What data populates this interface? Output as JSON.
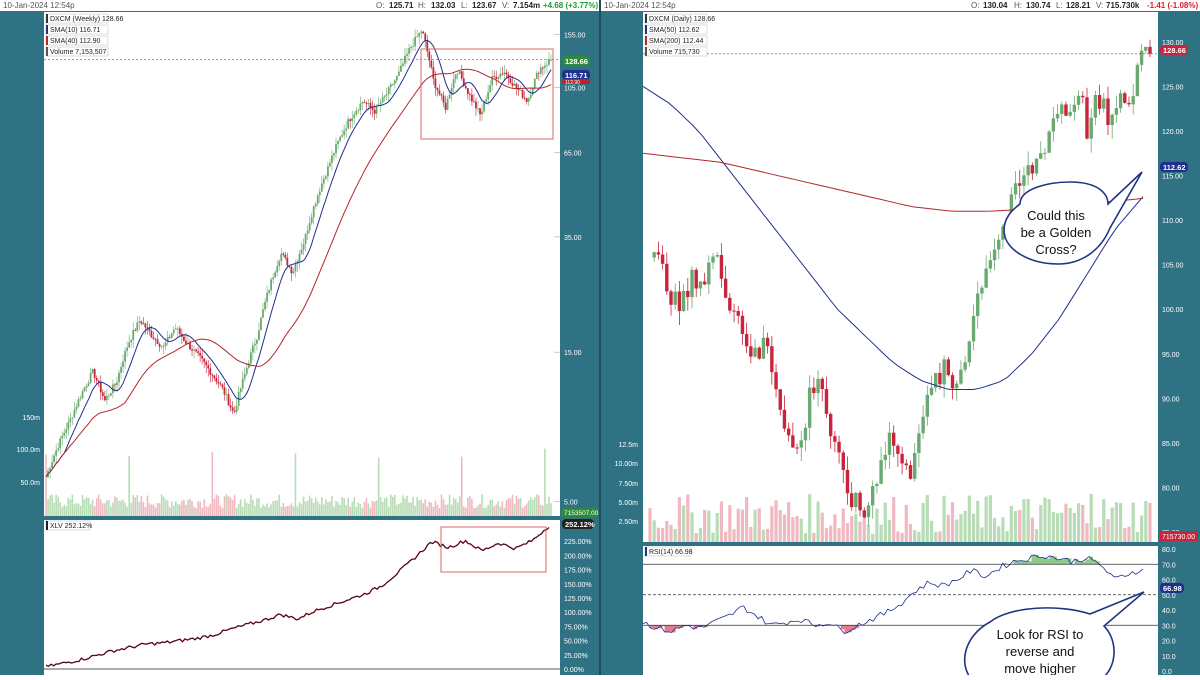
{
  "colors": {
    "frame": "#2f7284",
    "up": "#6aaa70",
    "down": "#c8243b",
    "sma_short": "#1e2f8c",
    "sma_long": "#b3262a",
    "annotation": "#1f3480",
    "rsi_up": "#8ecb8a",
    "rsi_down": "#e57e8c",
    "positive": "#1e9a38",
    "negative": "#d4202a"
  },
  "left": {
    "topbar": {
      "date": "10-Jan-2024 12:54p",
      "o_label": "O:",
      "o_value": "125.71",
      "h_label": "H:",
      "h_value": "132.03",
      "l_label": "L:",
      "l_value": "123.67",
      "v_label": "V:",
      "v_value": "7.154m",
      "change": "+4.68 (+3.77%)"
    },
    "legend": [
      {
        "text": "DXCM (Weekly) 128.66",
        "color": "#333333"
      },
      {
        "text": "SMA(10) 116.71",
        "color": "#1e2f8c"
      },
      {
        "text": "SMA(40) 112.90",
        "color": "#b3262a"
      },
      {
        "text": "Volume 7,153,507",
        "color": "#555555"
      }
    ],
    "lower_legend": "XLV 252.12%",
    "price_badges": [
      "128.66",
      "116.71",
      "112.90"
    ],
    "volume_badge": "7153507.00",
    "xlv_badge": "252.12%"
  },
  "right": {
    "topbar": {
      "date": "10-Jan-2024 12:54p",
      "o_label": "O:",
      "o_value": "130.04",
      "h_label": "H:",
      "h_value": "130.74",
      "l_label": "L:",
      "l_value": "128.21",
      "v_label": "V:",
      "v_value": "715.730k",
      "change": "-1.41 (-1.08%)"
    },
    "legend": [
      {
        "text": "DXCM (Daily) 128.66",
        "color": "#333333"
      },
      {
        "text": "SMA(50) 112.62",
        "color": "#1e2f8c"
      },
      {
        "text": "SMA(200) 112.44",
        "color": "#b3262a"
      },
      {
        "text": "Volume 715,730",
        "color": "#555555"
      }
    ],
    "lower_legend": "RSI(14) 66.98",
    "price_badges": [
      "128.66",
      "112.62"
    ],
    "volume_badge": "715730.00",
    "rsi_badge": "66.98",
    "callouts": {
      "golden_cross": [
        "Could this",
        "be a Golden",
        "Cross?"
      ],
      "rsi": [
        "Look for RSI to",
        "reverse and",
        "move higher"
      ]
    }
  },
  "chart_data": [
    {
      "type": "candlestick",
      "title": "DXCM (Weekly) 128.66",
      "scale": "log",
      "ylim": [
        4.5,
        180
      ],
      "y_ticks": [
        155.0,
        105.0,
        65.0,
        35.0,
        15.0,
        5.0
      ],
      "series": [
        {
          "name": "DXCM",
          "values": [
            6,
            7.5,
            9,
            11,
            13,
            10.5,
            12,
            16,
            19,
            17,
            15.5,
            18,
            16,
            14.5,
            13,
            11.5,
            9.5,
            13,
            17,
            24,
            31,
            27,
            34,
            46,
            58,
            72,
            85,
            95,
            88,
            100,
            115,
            140,
            160,
            110,
            90,
            120,
            100,
            85,
            112,
            118,
            105,
            95,
            120,
            128.66
          ]
        },
        {
          "name": "SMA(10)",
          "values": [
            116.71
          ]
        },
        {
          "name": "SMA(40)",
          "values": [
            112.9
          ]
        }
      ],
      "volume_ticks": [
        "150m",
        "100.0m",
        "50.0m"
      ],
      "annotations": [
        "rectangle around 2021-2024 trading range (about 70-150)"
      ]
    },
    {
      "type": "line",
      "title": "XLV 252.12%",
      "y_ticks": [
        "225.00%",
        "200.00%",
        "175.00%",
        "150.00%",
        "125.00%",
        "100.00%",
        "75.00%",
        "50.00%",
        "25.00%",
        "0.00%"
      ],
      "ylim": [
        0,
        250
      ],
      "series": [
        {
          "name": "XLV",
          "values": [
            4,
            10,
            16,
            24,
            32,
            38,
            44,
            46,
            50,
            54,
            60,
            70,
            78,
            86,
            96,
            88,
            102,
            112,
            122,
            132,
            146,
            170,
            196,
            224,
            214,
            226,
            208,
            222,
            212,
            226,
            252
          ]
        }
      ],
      "annotations": [
        "rectangle around 2022-2024 trading range"
      ]
    },
    {
      "type": "candlestick",
      "title": "DXCM (Daily) 128.66",
      "scale": "linear",
      "ylim": [
        74,
        132
      ],
      "y_ticks": [
        130.0,
        125.0,
        120.0,
        115.0,
        110.0,
        105.0,
        100.0,
        95.0,
        90.0,
        85.0,
        80.0,
        75.0
      ],
      "series": [
        {
          "name": "DXCM",
          "values": [
            106,
            105,
            103,
            100,
            101,
            104,
            103,
            106,
            104,
            101,
            99,
            96,
            94,
            97,
            92,
            88,
            84,
            85,
            91,
            93,
            87,
            83,
            80,
            78,
            77,
            80,
            84,
            86,
            83,
            81,
            87,
            89,
            92,
            93,
            91,
            94,
            98,
            103,
            106,
            108,
            110,
            113,
            115,
            116,
            118,
            121,
            123,
            122,
            125,
            120,
            123,
            122,
            121,
            124,
            123,
            130,
            128.66
          ]
        },
        {
          "name": "SMA(50)",
          "values": [
            125,
            123,
            120,
            116,
            112,
            108,
            104,
            100,
            97,
            94,
            92,
            91,
            91,
            92,
            95,
            99,
            104,
            109,
            112.62
          ]
        },
        {
          "name": "SMA(200)",
          "values": [
            117.5,
            117,
            116.5,
            115.5,
            114.5,
            113.5,
            112.5,
            111.5,
            111,
            111,
            111.2,
            111.6,
            112,
            112.44
          ]
        }
      ],
      "volume_ticks": [
        "12.5m",
        "10.00m",
        "7.50m",
        "5.00m",
        "2.50m"
      ]
    },
    {
      "type": "line",
      "title": "RSI(14) 66.98",
      "ylim": [
        0,
        80
      ],
      "y_ticks": [
        80.0,
        70.0,
        60.0,
        50.0,
        40.0,
        30.0,
        20.0,
        10.0,
        0.0
      ],
      "reference_lines": [
        70,
        50,
        30
      ],
      "series": [
        {
          "name": "RSI(14)",
          "values": [
            32,
            28,
            26,
            30,
            28,
            32,
            36,
            42,
            36,
            30,
            32,
            34,
            30,
            32,
            26,
            30,
            34,
            38,
            44,
            52,
            58,
            56,
            60,
            66,
            62,
            68,
            72,
            74,
            76,
            74,
            72,
            74,
            70,
            60,
            64,
            66.98
          ]
        }
      ]
    }
  ]
}
